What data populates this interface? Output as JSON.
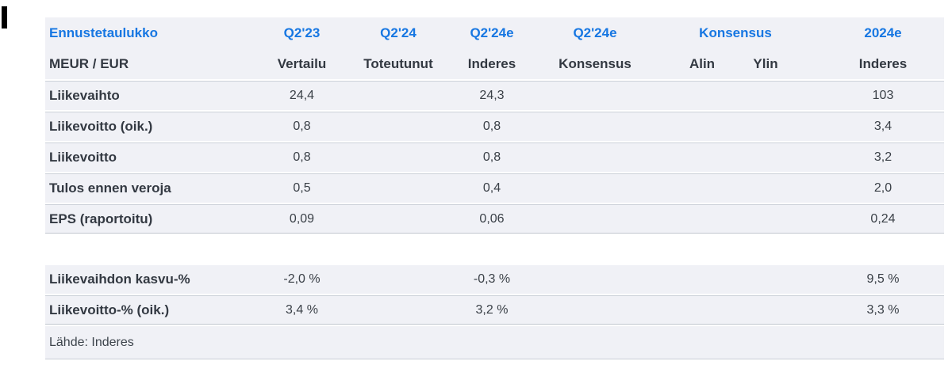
{
  "colors": {
    "accent_blue": "#1777e2",
    "row_background": "#f0f1f6",
    "text_dark": "#333942",
    "marker_black": "#000000"
  },
  "chart_data": {
    "type": "table",
    "title": "Ennustetaulukko",
    "unit": "MEUR / EUR",
    "header_row1": [
      "Ennustetaulukko",
      "Q2'23",
      "Q2'24",
      "Q2'24e",
      "Q2'24e",
      "Konsensus",
      "2024e"
    ],
    "header_row2": [
      "MEUR / EUR",
      "Vertailu",
      "Toteutunut",
      "Inderes",
      "Konsensus",
      "Alin",
      "Ylin",
      "Inderes"
    ],
    "rows": [
      {
        "cells": [
          "Liikevaihto",
          "24,4",
          "",
          "24,3",
          "",
          "",
          "",
          "103"
        ]
      },
      {
        "cells": [
          "Liikevoitto (oik.)",
          "0,8",
          "",
          "0,8",
          "",
          "",
          "",
          "3,4"
        ]
      },
      {
        "cells": [
          "Liikevoitto",
          "0,8",
          "",
          "0,8",
          "",
          "",
          "",
          "3,2"
        ]
      },
      {
        "cells": [
          "Tulos ennen veroja",
          "0,5",
          "",
          "0,4",
          "",
          "",
          "",
          "2,0"
        ]
      },
      {
        "cells": [
          "EPS (raportoitu)",
          "0,09",
          "",
          "0,06",
          "",
          "",
          "",
          "0,24"
        ]
      }
    ],
    "growth_rows": [
      {
        "cells": [
          "Liikevaihdon kasvu-%",
          "-2,0 %",
          "",
          "-0,3 %",
          "",
          "",
          "",
          "9,5 %"
        ]
      },
      {
        "cells": [
          "Liikevoitto-% (oik.)",
          "3,4 %",
          "",
          "3,2 %",
          "",
          "",
          "",
          "3,3 %"
        ]
      }
    ],
    "source_note": "Lähde: Inderes",
    "layout": {
      "columns_centered": true,
      "label_column_left_aligned": true,
      "grid": "off"
    }
  }
}
